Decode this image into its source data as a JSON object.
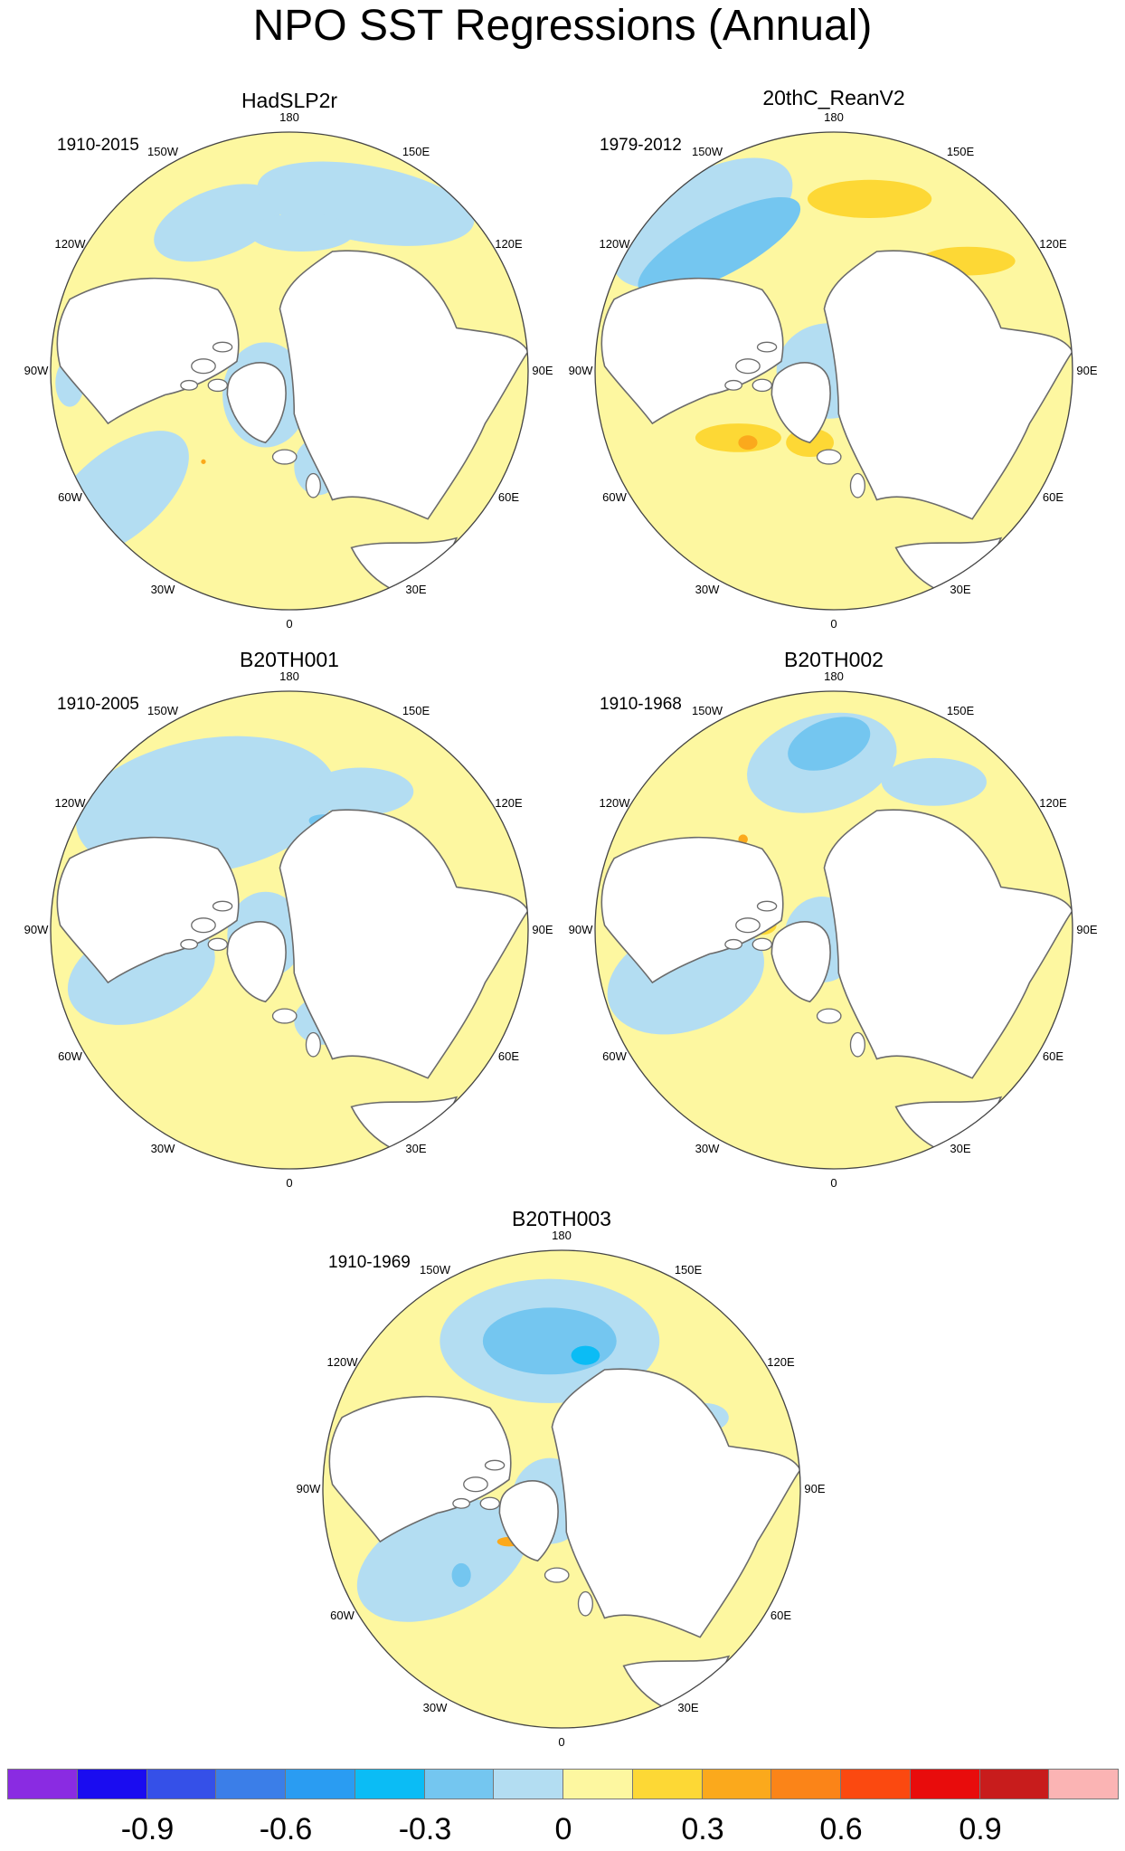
{
  "title": "NPO SST Regressions (Annual)",
  "panels": [
    {
      "name": "HadSLP2r",
      "period": "1910-2015"
    },
    {
      "name": "20thC_ReanV2",
      "period": "1979-2012"
    },
    {
      "name": "B20TH001",
      "period": "1910-2005"
    },
    {
      "name": "B20TH002",
      "period": "1910-1968"
    },
    {
      "name": "B20TH003",
      "period": "1910-1969"
    }
  ],
  "longitude_labels": [
    "180",
    "150E",
    "120E",
    "90E",
    "60E",
    "30E",
    "0",
    "30W",
    "60W",
    "90W",
    "120W",
    "150W"
  ],
  "colorbar": {
    "colors": [
      "#8a2be2",
      "#1a0cf0",
      "#3550e8",
      "#3b7ee8",
      "#2a9cf2",
      "#0bbcf5",
      "#74c6f0",
      "#b3ddf2",
      "#fdf7a0",
      "#fdd835",
      "#fba91c",
      "#fb8418",
      "#fb4910",
      "#e80c0c",
      "#c81c1c",
      "#fbb4b4"
    ],
    "labels": [
      "-0.9",
      "-0.6",
      "-0.3",
      "0",
      "0.3",
      "0.6",
      "0.9"
    ]
  },
  "legend": {
    "land_color": "#ffffff",
    "coast_color": "#6b6b6b"
  }
}
